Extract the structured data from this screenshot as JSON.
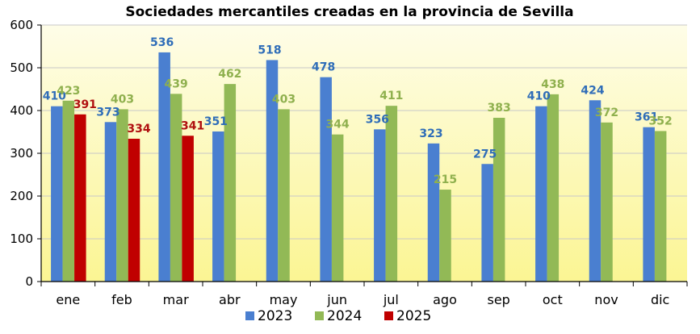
{
  "chart_data": {
    "type": "bar",
    "title": "Sociedades mercantiles creadas en la provincia de Sevilla",
    "xlabel": "",
    "ylabel": "",
    "ylim": [
      0,
      600
    ],
    "yticks": [
      0,
      100,
      200,
      300,
      400,
      500,
      600
    ],
    "grid": true,
    "legend_position": "bottom",
    "categories": [
      "ene",
      "feb",
      "mar",
      "abr",
      "may",
      "jun",
      "jul",
      "ago",
      "sep",
      "oct",
      "nov",
      "dic"
    ],
    "series": [
      {
        "name": "2023",
        "color": "#4a7fd0",
        "label_color": "#2f6db8",
        "values": [
          410,
          373,
          536,
          351,
          518,
          478,
          356,
          323,
          275,
          410,
          424,
          361
        ]
      },
      {
        "name": "2024",
        "color": "#92b956",
        "label_color": "#8fb04e",
        "values": [
          423,
          403,
          439,
          462,
          403,
          344,
          411,
          215,
          383,
          438,
          372,
          352
        ]
      },
      {
        "name": "2025",
        "color": "#c00000",
        "label_color": "#b01010",
        "values": [
          391,
          334,
          341,
          null,
          null,
          null,
          null,
          null,
          null,
          null,
          null,
          null
        ]
      }
    ],
    "colors": {
      "plot_bg_top": "#fefde8",
      "plot_bg_bottom": "#fbf593",
      "gridline": "#c8c8c8",
      "axis": "#000000"
    }
  }
}
